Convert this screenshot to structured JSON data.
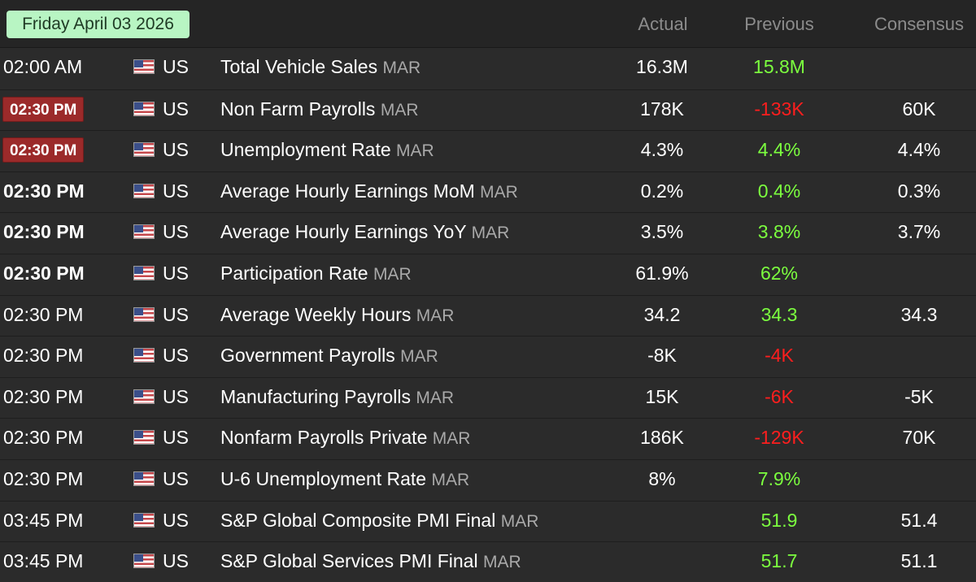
{
  "header": {
    "date": "Friday April 03 2026",
    "col_actual": "Actual",
    "col_previous": "Previous",
    "col_consensus": "Consensus"
  },
  "colors": {
    "date_badge_bg": "#b8f5c3",
    "highlight_time_bg": "#9b2a2a",
    "better_value": "#7cff3f",
    "worse_value": "#ff1e1e"
  },
  "rows": [
    {
      "time": "02:00 AM",
      "time_style": "normal",
      "flag_icon": "us-flag-icon",
      "country": "US",
      "event": "Total Vehicle Sales",
      "period": "MAR",
      "actual": "16.3M",
      "previous": "15.8M",
      "previous_trend": "up",
      "consensus": ""
    },
    {
      "time": "02:30 PM",
      "time_style": "badge",
      "flag_icon": "us-flag-icon",
      "country": "US",
      "event": "Non Farm Payrolls",
      "period": "MAR",
      "actual": "178K",
      "previous": "-133K",
      "previous_trend": "down",
      "consensus": "60K"
    },
    {
      "time": "02:30 PM",
      "time_style": "badge",
      "flag_icon": "us-flag-icon",
      "country": "US",
      "event": "Unemployment Rate",
      "period": "MAR",
      "actual": "4.3%",
      "previous": "4.4%",
      "previous_trend": "up",
      "consensus": "4.4%"
    },
    {
      "time": "02:30 PM",
      "time_style": "bold",
      "flag_icon": "us-flag-icon",
      "country": "US",
      "event": "Average Hourly Earnings MoM",
      "period": "MAR",
      "actual": "0.2%",
      "previous": "0.4%",
      "previous_trend": "up",
      "consensus": "0.3%"
    },
    {
      "time": "02:30 PM",
      "time_style": "bold",
      "flag_icon": "us-flag-icon",
      "country": "US",
      "event": "Average Hourly Earnings YoY",
      "period": "MAR",
      "actual": "3.5%",
      "previous": "3.8%",
      "previous_trend": "up",
      "consensus": "3.7%"
    },
    {
      "time": "02:30 PM",
      "time_style": "bold",
      "flag_icon": "us-flag-icon",
      "country": "US",
      "event": "Participation Rate",
      "period": "MAR",
      "actual": "61.9%",
      "previous": "62%",
      "previous_trend": "up",
      "consensus": ""
    },
    {
      "time": "02:30 PM",
      "time_style": "normal",
      "flag_icon": "us-flag-icon",
      "country": "US",
      "event": "Average Weekly Hours",
      "period": "MAR",
      "actual": "34.2",
      "previous": "34.3",
      "previous_trend": "up",
      "consensus": "34.3"
    },
    {
      "time": "02:30 PM",
      "time_style": "normal",
      "flag_icon": "us-flag-icon",
      "country": "US",
      "event": "Government Payrolls",
      "period": "MAR",
      "actual": "-8K",
      "previous": "-4K",
      "previous_trend": "down",
      "consensus": ""
    },
    {
      "time": "02:30 PM",
      "time_style": "normal",
      "flag_icon": "us-flag-icon",
      "country": "US",
      "event": "Manufacturing Payrolls",
      "period": "MAR",
      "actual": "15K",
      "previous": "-6K",
      "previous_trend": "down",
      "consensus": "-5K"
    },
    {
      "time": "02:30 PM",
      "time_style": "normal",
      "flag_icon": "us-flag-icon",
      "country": "US",
      "event": "Nonfarm Payrolls Private",
      "period": "MAR",
      "actual": "186K",
      "previous": "-129K",
      "previous_trend": "down",
      "consensus": "70K"
    },
    {
      "time": "02:30 PM",
      "time_style": "normal",
      "flag_icon": "us-flag-icon",
      "country": "US",
      "event": "U-6 Unemployment Rate",
      "period": "MAR",
      "actual": "8%",
      "previous": "7.9%",
      "previous_trend": "up",
      "consensus": ""
    },
    {
      "time": "03:45 PM",
      "time_style": "normal",
      "flag_icon": "us-flag-icon",
      "country": "US",
      "event": "S&P Global Composite PMI Final",
      "period": "MAR",
      "actual": "",
      "previous": "51.9",
      "previous_trend": "up",
      "consensus": "51.4"
    },
    {
      "time": "03:45 PM",
      "time_style": "normal",
      "flag_icon": "us-flag-icon",
      "country": "US",
      "event": "S&P Global Services PMI Final",
      "period": "MAR",
      "actual": "",
      "previous": "51.7",
      "previous_trend": "up",
      "consensus": "51.1"
    }
  ]
}
